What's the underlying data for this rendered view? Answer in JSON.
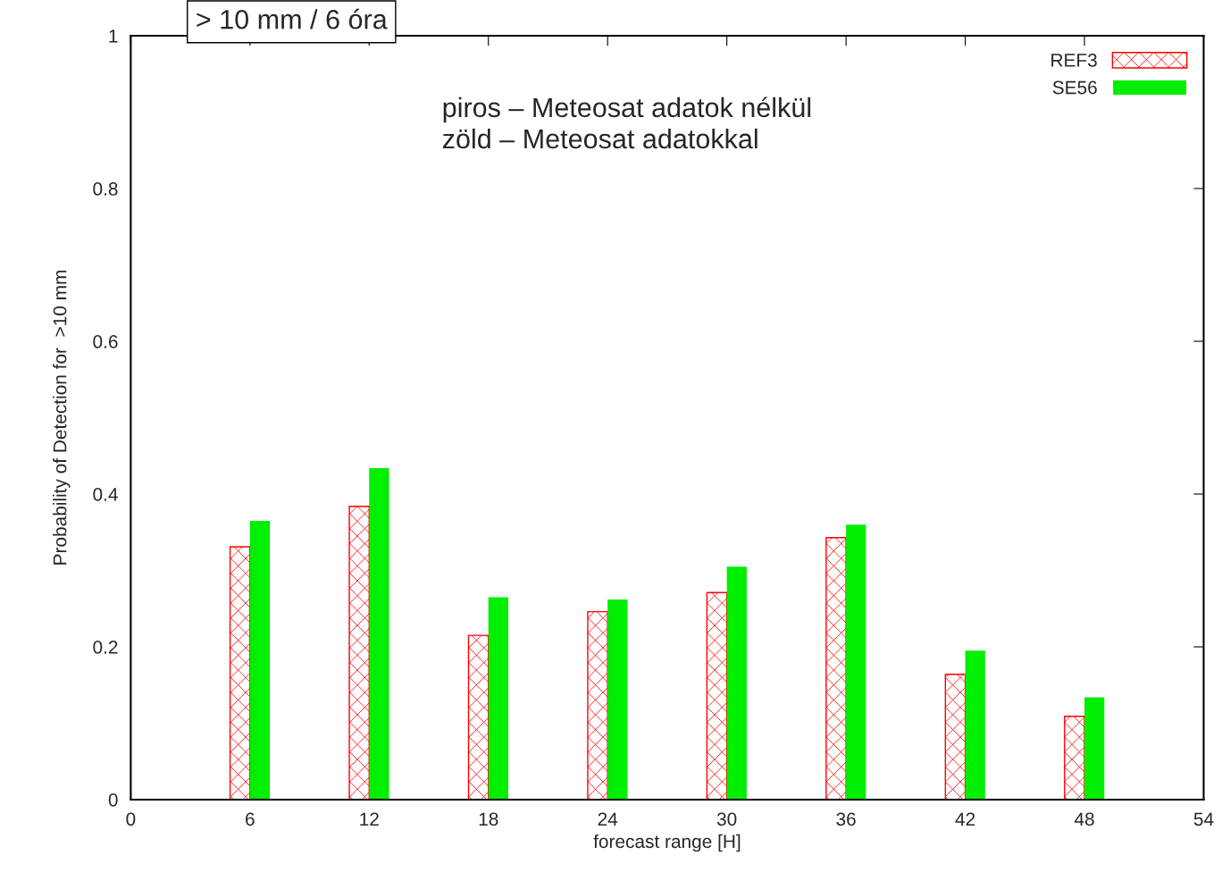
{
  "chart_data": {
    "type": "bar",
    "title": "> 10 mm / 6 óra",
    "xlabel": "forecast range [H]",
    "ylabel": "Probability of Detection for  >10 mm",
    "x": [
      6,
      12,
      18,
      24,
      30,
      36,
      42,
      48
    ],
    "series": [
      {
        "name": "REF3",
        "color": "#ff0000",
        "values": [
          0.331,
          0.384,
          0.215,
          0.246,
          0.271,
          0.343,
          0.164,
          0.109
        ]
      },
      {
        "name": "SE56",
        "color": "#00ee00",
        "values": [
          0.365,
          0.434,
          0.265,
          0.262,
          0.305,
          0.36,
          0.195,
          0.134
        ]
      }
    ],
    "annotations": [
      "piros – Meteosat adatok nélkül",
      "zöld – Meteosat adatokkal"
    ],
    "xlim": [
      0,
      54
    ],
    "xticks": [
      0,
      6,
      12,
      18,
      24,
      30,
      36,
      42,
      48,
      54
    ],
    "ylim": [
      0,
      1
    ],
    "yticks": [
      0,
      0.2,
      0.4,
      0.6,
      0.8,
      1
    ],
    "grid": false,
    "legend": "top right"
  }
}
